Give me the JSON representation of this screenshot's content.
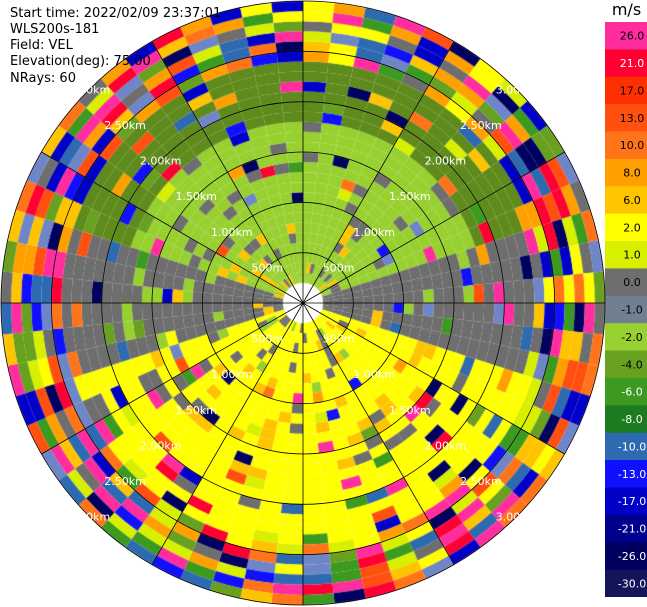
{
  "header": {
    "start_time": "Start time: 2022/02/09 23:37:01",
    "instrument": "WLS200s-181",
    "field": "Field: VEL",
    "elevation": "Elevation(deg): 75.00",
    "nrays": "NRays: 60"
  },
  "chart_data": {
    "type": "heatmap",
    "projection": "polar-ppi",
    "title": "",
    "field": "VEL",
    "elevation_deg": 75.0,
    "nrays": 60,
    "azimuth_step_deg": 6,
    "range_step_m": 100,
    "max_range_km": 3.0,
    "range_ring_labels": [
      "500m",
      "1.00km",
      "1.50km",
      "2.00km",
      "2.50km",
      "3.00km"
    ],
    "range_rings_km": [
      0.5,
      1.0,
      1.5,
      2.0,
      2.5,
      3.0
    ],
    "spokes_deg": [
      0,
      30,
      60,
      90,
      120,
      150,
      180,
      210,
      240,
      270,
      300,
      330
    ],
    "colorbar": {
      "unit": "m/s",
      "tick_labels": [
        "26.0",
        "21.0",
        "17.0",
        "13.0",
        "10.0",
        "8.0",
        "6.0",
        "2.0",
        "1.0",
        "0.0",
        "-1.0",
        "-2.0",
        "-4.0",
        "-6.0",
        "-8.0",
        "-10.0",
        "-13.0",
        "-17.0",
        "-21.0",
        "-26.0",
        "-30.0"
      ],
      "colors": [
        "#ff2d9e",
        "#ff0033",
        "#ff3000",
        "#ff5010",
        "#ff7418",
        "#ffa000",
        "#ffc400",
        "#ffff00",
        "#d8f000",
        "#6e6e6e",
        "#708090",
        "#98d030",
        "#68a020",
        "#3c9a20",
        "#1c7a20",
        "#2e6ab0",
        "#1010ff",
        "#0000c8",
        "#00008c",
        "#000060",
        "#14145a"
      ]
    },
    "azimuth_profile": {
      "description_sectors_deg": [
        {
          "from": 345,
          "to": 75,
          "near": "green",
          "mid": "olive",
          "far": "mixed"
        },
        {
          "from": 75,
          "to": 110,
          "near": "gray",
          "mid": "gray",
          "far": "mixed"
        },
        {
          "from": 110,
          "to": 255,
          "near": "yellow",
          "mid": "yellow",
          "far": "mixed"
        },
        {
          "from": 255,
          "to": 290,
          "near": "gray",
          "mid": "gray",
          "far": "mixed"
        },
        {
          "from": 290,
          "to": 345,
          "near": "lightgreen",
          "mid": "olive",
          "far": "mixed"
        }
      ]
    }
  }
}
